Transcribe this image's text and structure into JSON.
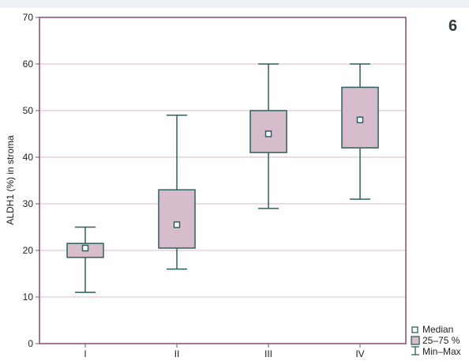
{
  "panel_label": "6",
  "colors": {
    "box_fill": "#d7bccb",
    "box_stroke": "#2f5f5c",
    "frame": "#8a4a76",
    "grid": "#d9b9ce",
    "median_fill": "#ffffff"
  },
  "chart_data": {
    "type": "boxplot",
    "title": "",
    "xlabel": "",
    "ylabel": "ALDH1 (%) in stroma",
    "ylim": [
      0,
      70
    ],
    "yticks": [
      0,
      10,
      20,
      30,
      40,
      50,
      60,
      70
    ],
    "grid": "horizontal",
    "categories": [
      "I",
      "II",
      "III",
      "IV"
    ],
    "boxes": [
      {
        "category": "I",
        "min": 11,
        "q1": 18.5,
        "median": 20.5,
        "q3": 21.5,
        "max": 25
      },
      {
        "category": "II",
        "min": 16,
        "q1": 20.5,
        "median": 25.5,
        "q3": 33,
        "max": 49
      },
      {
        "category": "III",
        "min": 29,
        "q1": 41,
        "median": 45,
        "q3": 50,
        "max": 60
      },
      {
        "category": "IV",
        "min": 31,
        "q1": 42,
        "median": 48,
        "q3": 55,
        "max": 60
      }
    ],
    "legend": {
      "placement": "bottom-right",
      "entries": [
        "Median",
        "25–75 %",
        "Min–Max"
      ]
    }
  }
}
